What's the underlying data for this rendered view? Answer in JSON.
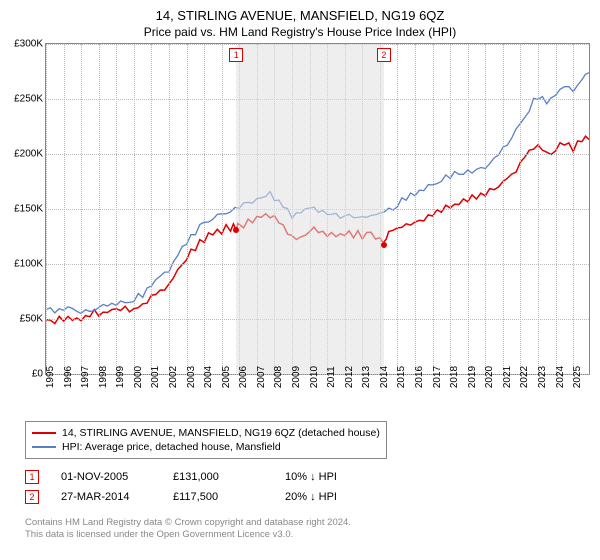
{
  "title": "14, STIRLING AVENUE, MANSFIELD, NG19 6QZ",
  "subtitle": "Price paid vs. HM Land Registry's House Price Index (HPI)",
  "chart": {
    "type": "line",
    "background_color": "#ffffff",
    "grid_color": "#bbbbbb",
    "xlim": [
      1995,
      2025.9
    ],
    "ylim": [
      0,
      300000
    ],
    "ytick_step": 50000,
    "yticks": [
      "£0",
      "£50K",
      "£100K",
      "£150K",
      "£200K",
      "£250K",
      "£300K"
    ],
    "xticks": [
      1995,
      1996,
      1997,
      1998,
      1999,
      2000,
      2001,
      2002,
      2003,
      2004,
      2005,
      2006,
      2007,
      2008,
      2009,
      2010,
      2011,
      2012,
      2013,
      2014,
      2015,
      2016,
      2017,
      2018,
      2019,
      2020,
      2021,
      2022,
      2023,
      2024,
      2025
    ],
    "band": {
      "start": 2005.83,
      "end": 2014.23,
      "color": "#e0e0e0"
    },
    "series": [
      {
        "name": "14, STIRLING AVENUE, MANSFIELD, NG19 6QZ (detached house)",
        "color": "#de0000",
        "line_width": 1.5,
        "points": [
          [
            1995,
            48000
          ],
          [
            1995.5,
            47000
          ],
          [
            1996,
            47000
          ],
          [
            1996.5,
            49000
          ],
          [
            1997,
            48000
          ],
          [
            1997.5,
            52000
          ],
          [
            1998,
            53000
          ],
          [
            1998.5,
            55000
          ],
          [
            1999,
            56000
          ],
          [
            1999.5,
            59000
          ],
          [
            2000,
            58000
          ],
          [
            2000.5,
            62000
          ],
          [
            2001,
            68000
          ],
          [
            2001.5,
            75000
          ],
          [
            2002,
            80000
          ],
          [
            2002.5,
            95000
          ],
          [
            2003,
            105000
          ],
          [
            2003.5,
            112000
          ],
          [
            2004,
            120000
          ],
          [
            2004.5,
            126000
          ],
          [
            2005,
            128000
          ],
          [
            2005.5,
            130000
          ],
          [
            2005.83,
            131000
          ],
          [
            2006,
            133000
          ],
          [
            2006.5,
            137000
          ],
          [
            2007,
            140000
          ],
          [
            2007.5,
            143000
          ],
          [
            2008,
            140000
          ],
          [
            2008.5,
            132000
          ],
          [
            2009,
            123000
          ],
          [
            2009.5,
            126000
          ],
          [
            2010,
            130000
          ],
          [
            2010.5,
            128000
          ],
          [
            2011,
            125000
          ],
          [
            2011.5,
            124000
          ],
          [
            2012,
            126000
          ],
          [
            2012.5,
            125000
          ],
          [
            2013,
            124000
          ],
          [
            2013.5,
            126000
          ],
          [
            2014,
            122000
          ],
          [
            2014.23,
            117500
          ],
          [
            2014.5,
            128000
          ],
          [
            2015,
            130000
          ],
          [
            2015.5,
            133000
          ],
          [
            2016,
            136000
          ],
          [
            2016.5,
            140000
          ],
          [
            2017,
            143000
          ],
          [
            2017.5,
            147000
          ],
          [
            2018,
            150000
          ],
          [
            2018.5,
            153000
          ],
          [
            2019,
            156000
          ],
          [
            2019.5,
            158000
          ],
          [
            2020,
            160000
          ],
          [
            2020.5,
            165000
          ],
          [
            2021,
            172000
          ],
          [
            2021.5,
            180000
          ],
          [
            2022,
            190000
          ],
          [
            2022.5,
            200000
          ],
          [
            2023,
            205000
          ],
          [
            2023.5,
            198000
          ],
          [
            2024,
            202000
          ],
          [
            2024.5,
            207000
          ],
          [
            2025,
            203000
          ],
          [
            2025.5,
            210000
          ],
          [
            2025.9,
            212000
          ]
        ]
      },
      {
        "name": "HPI: Average price, detached house, Mansfield",
        "color": "#5b7fc7",
        "line_width": 1.3,
        "points": [
          [
            1995,
            55000
          ],
          [
            1995.5,
            54000
          ],
          [
            1996,
            54000
          ],
          [
            1996.5,
            56000
          ],
          [
            1997,
            55000
          ],
          [
            1997.5,
            58000
          ],
          [
            1998,
            60000
          ],
          [
            1998.5,
            62000
          ],
          [
            1999,
            63000
          ],
          [
            1999.5,
            66000
          ],
          [
            2000,
            65000
          ],
          [
            2000.5,
            70000
          ],
          [
            2001,
            76000
          ],
          [
            2001.5,
            85000
          ],
          [
            2002,
            90000
          ],
          [
            2002.5,
            105000
          ],
          [
            2003,
            115000
          ],
          [
            2003.5,
            125000
          ],
          [
            2004,
            135000
          ],
          [
            2004.5,
            142000
          ],
          [
            2005,
            145000
          ],
          [
            2005.5,
            148000
          ],
          [
            2006,
            152000
          ],
          [
            2006.5,
            155000
          ],
          [
            2007,
            158000
          ],
          [
            2007.5,
            162000
          ],
          [
            2008,
            157000
          ],
          [
            2008.5,
            148000
          ],
          [
            2009,
            140000
          ],
          [
            2009.5,
            143000
          ],
          [
            2010,
            148000
          ],
          [
            2010.5,
            145000
          ],
          [
            2011,
            143000
          ],
          [
            2011.5,
            142000
          ],
          [
            2012,
            144000
          ],
          [
            2012.5,
            143000
          ],
          [
            2013,
            142000
          ],
          [
            2013.5,
            145000
          ],
          [
            2014,
            147000
          ],
          [
            2014.5,
            150000
          ],
          [
            2015,
            152000
          ],
          [
            2015.5,
            156000
          ],
          [
            2016,
            160000
          ],
          [
            2016.5,
            165000
          ],
          [
            2017,
            168000
          ],
          [
            2017.5,
            173000
          ],
          [
            2018,
            176000
          ],
          [
            2018.5,
            180000
          ],
          [
            2019,
            183000
          ],
          [
            2019.5,
            186000
          ],
          [
            2020,
            188000
          ],
          [
            2020.5,
            195000
          ],
          [
            2021,
            205000
          ],
          [
            2021.5,
            215000
          ],
          [
            2022,
            228000
          ],
          [
            2022.5,
            240000
          ],
          [
            2023,
            248000
          ],
          [
            2023.5,
            243000
          ],
          [
            2024,
            250000
          ],
          [
            2024.5,
            258000
          ],
          [
            2025,
            255000
          ],
          [
            2025.5,
            265000
          ],
          [
            2025.9,
            270000
          ]
        ]
      }
    ],
    "markers": [
      {
        "label": "1",
        "x": 2005.83,
        "y": 131000,
        "color": "#de0000"
      },
      {
        "label": "2",
        "x": 2014.23,
        "y": 117500,
        "color": "#de0000"
      }
    ]
  },
  "legend": {
    "border_color": "#888888",
    "items": [
      {
        "color": "#de0000",
        "label": "14, STIRLING AVENUE, MANSFIELD, NG19 6QZ (detached house)"
      },
      {
        "color": "#5b7fc7",
        "label": "HPI: Average price, detached house, Mansfield"
      }
    ]
  },
  "annotations": [
    {
      "marker": "1",
      "date": "01-NOV-2005",
      "price": "£131,000",
      "diff": "10% ↓ HPI"
    },
    {
      "marker": "2",
      "date": "27-MAR-2014",
      "price": "£117,500",
      "diff": "20% ↓ HPI"
    }
  ],
  "footer": {
    "line1": "Contains HM Land Registry data © Crown copyright and database right 2024.",
    "line2": "This data is licensed under the Open Government Licence v3.0."
  }
}
